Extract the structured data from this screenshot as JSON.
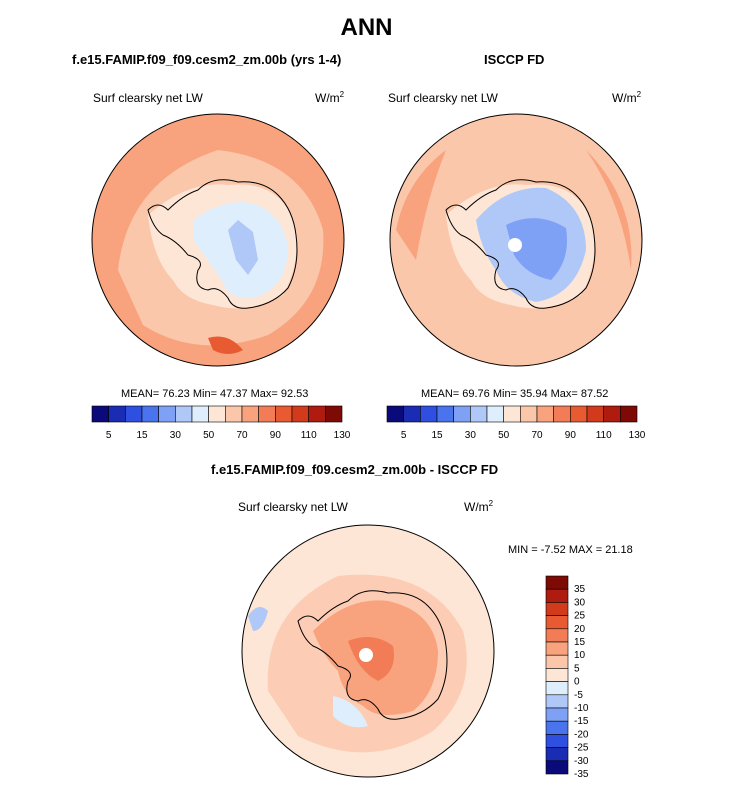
{
  "figure_title": "ANN",
  "colors": {
    "abs_scale": [
      "#0a0a7a",
      "#1a2bb4",
      "#2f4fe0",
      "#4a73ee",
      "#7fa1f5",
      "#b0c8f8",
      "#dfeefc",
      "#fde6d6",
      "#fbc7ab",
      "#f8a37e",
      "#f27c55",
      "#e85b32",
      "#d23a1c",
      "#b01b0f",
      "#7d0a04"
    ],
    "diff_scale": [
      "#0a0a7a",
      "#1a2bb4",
      "#2f4fe0",
      "#4a73ee",
      "#7fa1f5",
      "#b0c8f8",
      "#dfeefc",
      "#fde6d6",
      "#fbc7ab",
      "#f8a37e",
      "#f27c55",
      "#e85b32",
      "#d23a1c",
      "#b01b0f",
      "#7d0a04"
    ],
    "land_outline": "#000000"
  },
  "panels": {
    "model": {
      "title": "f.e15.FAMIP.f09_f09.cesm2_zm.00b (yrs 1-4)",
      "variable": "Surf clearsky net LW",
      "units_base": "W/m",
      "units_exp": "2",
      "stats": "MEAN=  76.23  Min=  47.37  Max=  92.53"
    },
    "obs": {
      "title": "ISCCP FD",
      "variable": "Surf clearsky net LW",
      "units_base": "W/m",
      "units_exp": "2",
      "stats": "MEAN=  69.76  Min=  35.94  Max=  87.52"
    },
    "diff": {
      "title": "f.e15.FAMIP.f09_f09.cesm2_zm.00b - ISCCP FD",
      "variable": "Surf clearsky net LW",
      "units_base": "W/m",
      "units_exp": "2",
      "stats": "MIN =  -7.52 MAX =  21.18"
    }
  },
  "chart_data": [
    {
      "type": "heatmap",
      "projection": "south polar stereographic",
      "title": "f.e15.FAMIP.f09_f09.cesm2_zm.00b (yrs 1-4)",
      "variable": "Surf clearsky net LW",
      "units": "W/m2",
      "mean": 76.23,
      "min": 47.37,
      "max": 92.53,
      "colorbar_levels": [
        5,
        10,
        15,
        20,
        30,
        40,
        50,
        60,
        70,
        80,
        90,
        100,
        110,
        120,
        130
      ],
      "colorbar_tick_labels": [
        "5",
        "15",
        "30",
        "50",
        "70",
        "90",
        "110",
        "130"
      ],
      "colorbar_orientation": "horizontal"
    },
    {
      "type": "heatmap",
      "projection": "south polar stereographic",
      "title": "ISCCP FD",
      "variable": "Surf clearsky net LW",
      "units": "W/m2",
      "mean": 69.76,
      "min": 35.94,
      "max": 87.52,
      "colorbar_levels": [
        5,
        10,
        15,
        20,
        30,
        40,
        50,
        60,
        70,
        80,
        90,
        100,
        110,
        120,
        130
      ],
      "colorbar_tick_labels": [
        "5",
        "15",
        "30",
        "50",
        "70",
        "90",
        "110",
        "130"
      ],
      "colorbar_orientation": "horizontal"
    },
    {
      "type": "heatmap",
      "projection": "south polar stereographic",
      "title": "f.e15.FAMIP.f09_f09.cesm2_zm.00b - ISCCP FD",
      "variable": "Surf clearsky net LW",
      "units": "W/m2",
      "min": -7.52,
      "max": 21.18,
      "colorbar_levels": [
        -35,
        -30,
        -25,
        -20,
        -15,
        -10,
        -5,
        0,
        5,
        10,
        15,
        20,
        25,
        30,
        35
      ],
      "colorbar_tick_labels": [
        "35",
        "30",
        "25",
        "20",
        "15",
        "10",
        "5",
        "0",
        "-5",
        "-10",
        "-15",
        "-20",
        "-25",
        "-30",
        "-35"
      ],
      "colorbar_orientation": "vertical"
    }
  ]
}
